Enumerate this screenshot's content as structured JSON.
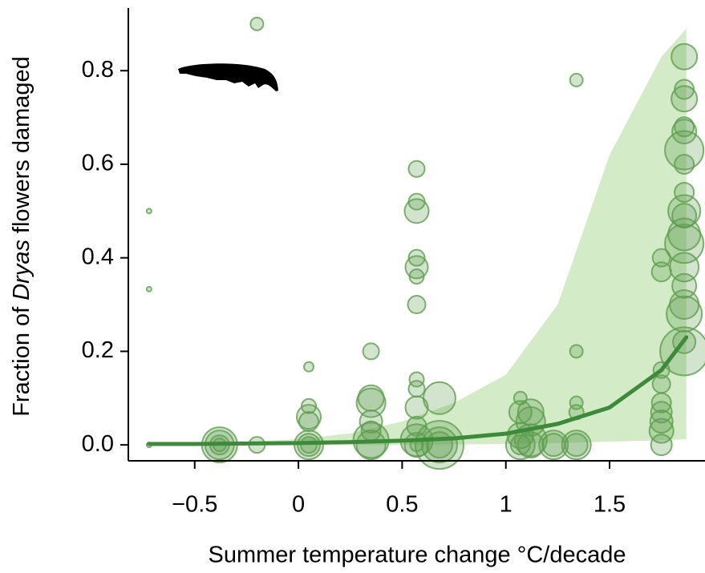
{
  "chart_data": {
    "type": "scatter",
    "x_label": "Summer temperature change  °C/decade",
    "y_label": [
      "Fraction of",
      "Dryas",
      "flowers damaged"
    ],
    "xlim": [
      -0.82,
      1.96
    ],
    "ylim": [
      -0.034,
      0.934
    ],
    "xticks": [
      {
        "value": -0.5,
        "label": "−0.5"
      },
      0,
      0.5,
      1,
      1.5
    ],
    "yticks": [
      {
        "value": 0,
        "label": "0.0"
      },
      0.2,
      0.4,
      0.6,
      0.8
    ],
    "series": [
      {
        "color": "#5f9e4f",
        "x": [
          -0.72,
          -0.72,
          -0.72,
          -0.38,
          -0.38,
          -0.38,
          -0.38,
          -0.2,
          -0.2,
          0.05,
          0.05,
          0.05,
          0.05,
          0.05,
          0.05,
          0.05,
          0.35,
          0.35,
          0.35,
          0.35,
          0.35,
          0.35,
          0.35,
          0.57,
          0.57,
          0.57,
          0.57,
          0.57,
          0.57,
          0.57,
          0.57,
          0.57,
          0.57,
          0.57,
          0.57,
          0.57,
          0.57,
          0.68,
          0.68,
          0.68,
          0.68,
          1.07,
          1.07,
          1.07,
          1.07,
          1.07,
          1.12,
          1.12,
          1.12,
          1.12,
          1.23,
          1.23,
          1.34,
          1.34,
          1.34,
          1.34,
          1.34,
          1.34,
          1.75,
          1.75,
          1.75,
          1.75,
          1.75,
          1.75,
          1.75,
          1.75,
          1.75,
          1.86,
          1.86,
          1.86,
          1.86,
          1.86,
          1.86,
          1.86,
          1.86,
          1.86,
          1.86,
          1.86,
          1.86,
          1.86,
          1.86,
          1.86,
          1.86,
          1.86,
          1.86
        ],
        "y": [
          0,
          0.5,
          0.333,
          0,
          0,
          0,
          0,
          0.9,
          0,
          0.167,
          0.083,
          0.05,
          0.06,
          0,
          0,
          0,
          0.2,
          0.09,
          0.1,
          0.05,
          0.01,
          0,
          0.03,
          0.59,
          0.52,
          0.5,
          0.4,
          0.38,
          0.36,
          0.3,
          0.14,
          0.12,
          0.08,
          0.04,
          0.01,
          0,
          0,
          0.1,
          0,
          0,
          0,
          0.1,
          0.07,
          0.02,
          0,
          0,
          0.07,
          0.05,
          0.01,
          0,
          0,
          0,
          0.78,
          0.2,
          0.09,
          0.07,
          0,
          0,
          0.4,
          0.37,
          0.16,
          0.13,
          0.09,
          0.07,
          0.05,
          0.03,
          0,
          0.83,
          0.76,
          0.74,
          0.68,
          0.67,
          0.63,
          0.6,
          0.54,
          0.5,
          0.49,
          0.45,
          0.43,
          0.38,
          0.34,
          0.3,
          0.28,
          0.22,
          0.2
        ],
        "sizes": [
          3,
          3,
          3,
          22,
          18,
          12,
          8,
          8,
          10,
          6,
          9,
          12,
          15,
          14,
          18,
          10,
          10,
          18,
          16,
          14,
          22,
          18,
          12,
          10,
          10,
          15,
          10,
          14,
          9,
          11,
          9,
          10,
          14,
          12,
          20,
          15,
          8,
          20,
          30,
          22,
          16,
          8,
          14,
          16,
          12,
          18,
          16,
          18,
          20,
          16,
          14,
          18,
          8,
          8,
          8,
          9,
          14,
          18,
          11,
          12,
          10,
          11,
          12,
          13,
          14,
          15,
          13,
          16,
          12,
          16,
          12,
          15,
          24,
          12,
          12,
          20,
          15,
          20,
          24,
          18,
          15,
          18,
          22,
          14,
          30
        ]
      }
    ],
    "fit": {
      "color": "#3d8a3b",
      "band_color": "#d3ebc6",
      "x": [
        -0.72,
        -0.5,
        -0.25,
        0,
        0.25,
        0.5,
        0.75,
        1,
        1.25,
        1.5,
        1.75,
        1.87
      ],
      "values": [
        0.002,
        0.002,
        0.003,
        0.004,
        0.006,
        0.009,
        0.014,
        0.024,
        0.045,
        0.08,
        0.16,
        0.23
      ],
      "upper": [
        0.004,
        0.005,
        0.007,
        0.012,
        0.025,
        0.05,
        0.09,
        0.15,
        0.3,
        0.62,
        0.83,
        0.89
      ],
      "lower": [
        0,
        0,
        0,
        0,
        0,
        0,
        0.001,
        0.002,
        0.004,
        0.007,
        0.01,
        0.012
      ]
    }
  }
}
